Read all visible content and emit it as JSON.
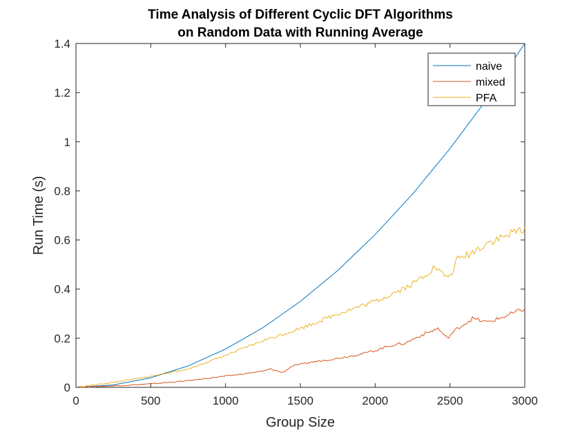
{
  "chart_data": {
    "type": "line",
    "title": [
      "Time Analysis of Different Cyclic DFT Algorithms",
      "on Random Data with Running Average"
    ],
    "xlabel": "Group Size",
    "ylabel": "Run Time (s)",
    "xlim": [
      0,
      3000
    ],
    "ylim": [
      0,
      1.4
    ],
    "xticks": [
      0,
      500,
      1000,
      1500,
      2000,
      2500,
      3000
    ],
    "xtick_labels": [
      "0",
      "500",
      "1000",
      "1500",
      "2000",
      "2500",
      "3000"
    ],
    "yticks": [
      0,
      0.2,
      0.4,
      0.6,
      0.8,
      1.0,
      1.2,
      1.4
    ],
    "ytick_labels": [
      "0",
      "0.2",
      "0.4",
      "0.6",
      "0.8",
      "1",
      "1.2",
      "1.4"
    ],
    "grid": false,
    "legend_position": "top-right",
    "series": [
      {
        "name": "naive",
        "color": "#0072BD",
        "x": [
          0,
          250,
          500,
          750,
          1000,
          1250,
          1500,
          1750,
          2000,
          2250,
          2500,
          2750,
          3000
        ],
        "y": [
          0,
          0.0097,
          0.039,
          0.0875,
          0.156,
          0.243,
          0.35,
          0.476,
          0.622,
          0.787,
          0.972,
          1.176,
          1.4
        ]
      },
      {
        "name": "mixed",
        "color": "#D95319",
        "x": [
          0,
          250,
          500,
          750,
          1000,
          1100,
          1250,
          1300,
          1380,
          1450,
          1600,
          1750,
          1900,
          2000,
          2100,
          2200,
          2300,
          2420,
          2480,
          2550,
          2650,
          2750,
          2850,
          3000
        ],
        "y": [
          0,
          0.006,
          0.014,
          0.027,
          0.046,
          0.053,
          0.066,
          0.075,
          0.06,
          0.088,
          0.105,
          0.118,
          0.135,
          0.15,
          0.17,
          0.18,
          0.21,
          0.24,
          0.2,
          0.24,
          0.28,
          0.265,
          0.285,
          0.32
        ]
      },
      {
        "name": "PFA",
        "color": "#EDB120",
        "x": [
          0,
          250,
          500,
          750,
          1000,
          1250,
          1500,
          1750,
          2000,
          2250,
          2400,
          2450,
          2500,
          2550,
          2650,
          2750,
          2850,
          3000
        ],
        "y": [
          0,
          0.02,
          0.045,
          0.075,
          0.13,
          0.19,
          0.24,
          0.3,
          0.35,
          0.42,
          0.49,
          0.46,
          0.45,
          0.52,
          0.55,
          0.59,
          0.61,
          0.65
        ]
      }
    ]
  }
}
